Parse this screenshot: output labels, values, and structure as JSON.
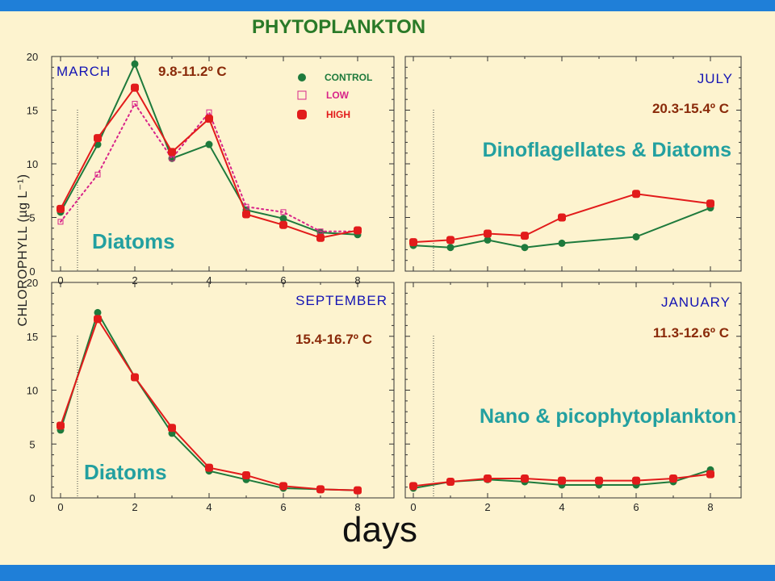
{
  "title": "PHYTOPLANKTON",
  "ylabel": "CHLOROPHYLL (µg L⁻¹)",
  "xlabel": "days",
  "colors": {
    "control": "#1e7a3c",
    "low": "#d8248a",
    "high": "#e21b1b",
    "month": "#1414b4",
    "temp": "#8a2a0a",
    "annot": "#23a0a0"
  },
  "chart_data": [
    {
      "type": "line",
      "panel": "MARCH",
      "month": "MARCH",
      "temp": "9.8-11.2º C",
      "annotation": "Diatoms",
      "legend": [
        "CONTROL",
        "LOW",
        "HIGH"
      ],
      "x": [
        0,
        1,
        2,
        3,
        4,
        5,
        6,
        7,
        8
      ],
      "ylim": [
        0,
        20
      ],
      "xticks": [
        "0",
        "2",
        "4",
        "6",
        "8"
      ],
      "yticks": [
        "0",
        "5",
        "10",
        "15",
        "20"
      ],
      "series": [
        {
          "name": "CONTROL",
          "values": [
            5.5,
            11.8,
            19.3,
            10.5,
            11.8,
            5.7,
            4.9,
            3.6,
            3.4
          ]
        },
        {
          "name": "LOW",
          "values": [
            4.6,
            9.0,
            15.6,
            10.5,
            14.8,
            6.0,
            5.5,
            3.7,
            3.7
          ]
        },
        {
          "name": "HIGH",
          "values": [
            5.8,
            12.4,
            17.1,
            11.1,
            14.2,
            5.3,
            4.3,
            3.1,
            3.8
          ]
        }
      ]
    },
    {
      "type": "line",
      "panel": "JULY",
      "month": "JULY",
      "temp": "20.3-15.4º C",
      "annotation": "Dinoflagellates & Diatoms",
      "x": [
        0,
        1,
        2,
        3,
        4,
        6,
        8
      ],
      "ylim": [
        0,
        20
      ],
      "series": [
        {
          "name": "CONTROL",
          "values": [
            2.4,
            2.2,
            2.9,
            2.2,
            2.6,
            3.2,
            5.9
          ]
        },
        {
          "name": "HIGH",
          "values": [
            2.7,
            2.9,
            3.5,
            3.3,
            5.0,
            7.2,
            6.3
          ]
        }
      ]
    },
    {
      "type": "line",
      "panel": "SEPTEMBER",
      "month": "SEPTEMBER",
      "temp": "15.4-16.7º C",
      "annotation": "Diatoms",
      "x": [
        0,
        1,
        2,
        3,
        4,
        5,
        6,
        7,
        8
      ],
      "ylim": [
        0,
        20
      ],
      "xticks": [
        "0",
        "2",
        "4",
        "6",
        "8"
      ],
      "yticks": [
        "0",
        "5",
        "10",
        "15",
        "20"
      ],
      "series": [
        {
          "name": "CONTROL",
          "values": [
            6.3,
            17.2,
            11.2,
            6.0,
            2.5,
            1.7,
            0.9,
            0.8,
            0.7
          ]
        },
        {
          "name": "HIGH",
          "values": [
            6.7,
            16.6,
            11.2,
            6.5,
            2.8,
            2.1,
            1.1,
            0.8,
            0.7
          ]
        }
      ]
    },
    {
      "type": "line",
      "panel": "JANUARY",
      "month": "JANUARY",
      "temp": "11.3-12.6º C",
      "annotation": "Nano & picophytoplankton",
      "x": [
        0,
        1,
        2,
        3,
        4,
        5,
        6,
        7,
        8
      ],
      "ylim": [
        0,
        20
      ],
      "xticks": [
        "0",
        "2",
        "4",
        "6",
        "8"
      ],
      "series": [
        {
          "name": "CONTROL",
          "values": [
            0.9,
            1.5,
            1.7,
            1.5,
            1.2,
            1.2,
            1.2,
            1.5,
            2.6
          ]
        },
        {
          "name": "HIGH",
          "values": [
            1.1,
            1.5,
            1.8,
            1.8,
            1.6,
            1.6,
            1.6,
            1.8,
            2.2
          ]
        }
      ]
    }
  ]
}
